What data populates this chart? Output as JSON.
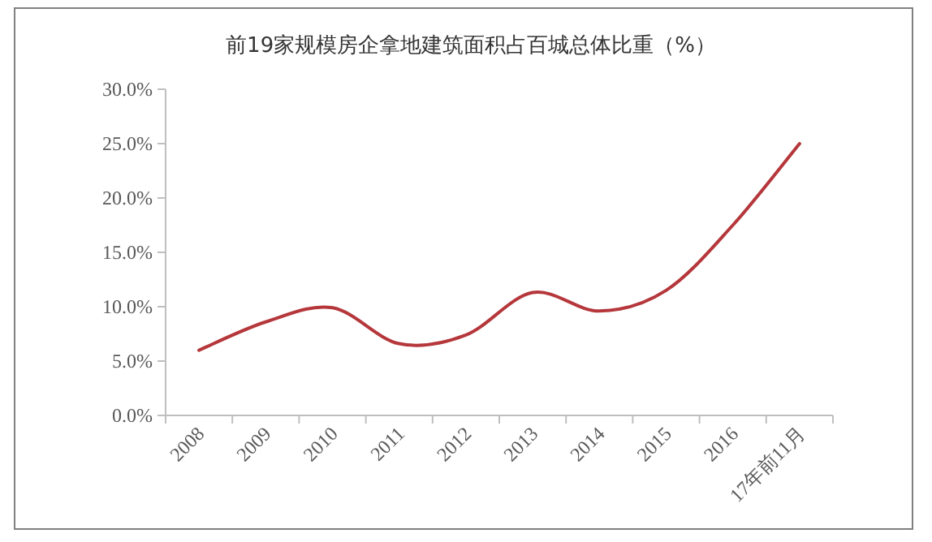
{
  "chart_data": {
    "type": "line",
    "title": "前19家规模房企拿地建筑面积占百城总体比重（%）",
    "categories": [
      "2008",
      "2009",
      "2010",
      "2011",
      "2012",
      "2013",
      "2014",
      "2015",
      "2016",
      "17年前11月"
    ],
    "series": [
      {
        "color": "#b5373b",
        "values": [
          6.0,
          8.6,
          9.9,
          6.6,
          7.4,
          11.3,
          9.6,
          11.5,
          17.5,
          25.0
        ]
      }
    ],
    "ylim": [
      0,
      30
    ],
    "yticks": [
      {
        "value": 0,
        "label": "0.0%"
      },
      {
        "value": 5,
        "label": "5.0%"
      },
      {
        "value": 10,
        "label": "10.0%"
      },
      {
        "value": 15,
        "label": "15.0%"
      },
      {
        "value": 20,
        "label": "20.0%"
      },
      {
        "value": 25,
        "label": "25.0%"
      },
      {
        "value": 30,
        "label": "30.0%"
      }
    ],
    "grid": false,
    "marker": "none",
    "line_style": "solid"
  }
}
